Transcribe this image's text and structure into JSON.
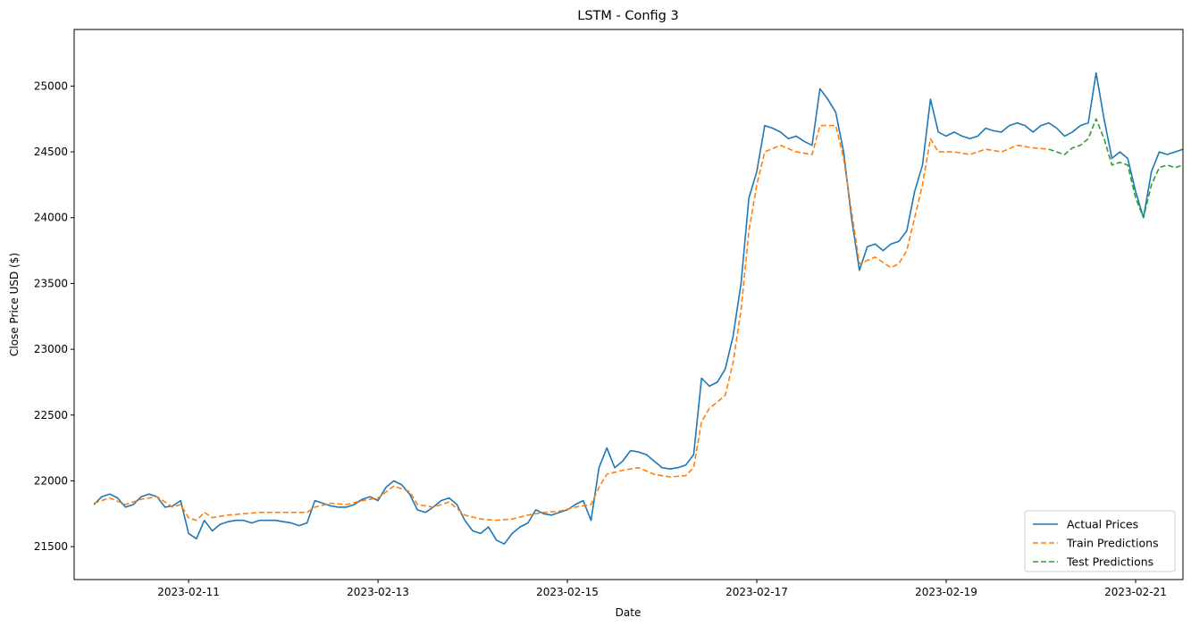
{
  "chart_data": {
    "type": "line",
    "title": "LSTM - Config 3",
    "xlabel": "Date",
    "ylabel": "Close Price USD ($)",
    "xlim": [
      "2023-02-09T19:00",
      "2023-02-21T12:00"
    ],
    "ylim": [
      21250,
      25430
    ],
    "x_ticks": [
      "2023-02-11",
      "2023-02-13",
      "2023-02-15",
      "2023-02-17",
      "2023-02-19",
      "2023-02-21"
    ],
    "y_ticks": [
      21500,
      22000,
      22500,
      23000,
      23500,
      24000,
      24500,
      25000
    ],
    "grid": false,
    "legend": "lower-right",
    "series": [
      {
        "name": "Actual Prices",
        "color": "#1f77b4",
        "style": "solid",
        "points": [
          [
            "2023-02-10T00:00",
            21820
          ],
          [
            "2023-02-10T02:00",
            21880
          ],
          [
            "2023-02-10T04:00",
            21900
          ],
          [
            "2023-02-10T06:00",
            21870
          ],
          [
            "2023-02-10T08:00",
            21800
          ],
          [
            "2023-02-10T10:00",
            21820
          ],
          [
            "2023-02-10T12:00",
            21880
          ],
          [
            "2023-02-10T14:00",
            21900
          ],
          [
            "2023-02-10T16:00",
            21880
          ],
          [
            "2023-02-10T18:00",
            21800
          ],
          [
            "2023-02-10T20:00",
            21810
          ],
          [
            "2023-02-10T22:00",
            21850
          ],
          [
            "2023-02-11T00:00",
            21600
          ],
          [
            "2023-02-11T02:00",
            21560
          ],
          [
            "2023-02-11T04:00",
            21700
          ],
          [
            "2023-02-11T06:00",
            21620
          ],
          [
            "2023-02-11T08:00",
            21670
          ],
          [
            "2023-02-11T10:00",
            21690
          ],
          [
            "2023-02-11T12:00",
            21700
          ],
          [
            "2023-02-11T14:00",
            21700
          ],
          [
            "2023-02-11T16:00",
            21680
          ],
          [
            "2023-02-11T18:00",
            21700
          ],
          [
            "2023-02-11T20:00",
            21700
          ],
          [
            "2023-02-11T22:00",
            21700
          ],
          [
            "2023-02-12T00:00",
            21690
          ],
          [
            "2023-02-12T02:00",
            21680
          ],
          [
            "2023-02-12T04:00",
            21660
          ],
          [
            "2023-02-12T06:00",
            21680
          ],
          [
            "2023-02-12T08:00",
            21850
          ],
          [
            "2023-02-12T10:00",
            21830
          ],
          [
            "2023-02-12T12:00",
            21810
          ],
          [
            "2023-02-12T14:00",
            21800
          ],
          [
            "2023-02-12T16:00",
            21800
          ],
          [
            "2023-02-12T18:00",
            21820
          ],
          [
            "2023-02-12T20:00",
            21860
          ],
          [
            "2023-02-12T22:00",
            21880
          ],
          [
            "2023-02-13T00:00",
            21850
          ],
          [
            "2023-02-13T02:00",
            21950
          ],
          [
            "2023-02-13T04:00",
            22000
          ],
          [
            "2023-02-13T06:00",
            21970
          ],
          [
            "2023-02-13T08:00",
            21900
          ],
          [
            "2023-02-13T10:00",
            21780
          ],
          [
            "2023-02-13T12:00",
            21760
          ],
          [
            "2023-02-13T14:00",
            21800
          ],
          [
            "2023-02-13T16:00",
            21850
          ],
          [
            "2023-02-13T18:00",
            21870
          ],
          [
            "2023-02-13T20:00",
            21820
          ],
          [
            "2023-02-13T22:00",
            21700
          ],
          [
            "2023-02-14T00:00",
            21620
          ],
          [
            "2023-02-14T02:00",
            21600
          ],
          [
            "2023-02-14T04:00",
            21650
          ],
          [
            "2023-02-14T06:00",
            21550
          ],
          [
            "2023-02-14T08:00",
            21520
          ],
          [
            "2023-02-14T10:00",
            21600
          ],
          [
            "2023-02-14T12:00",
            21650
          ],
          [
            "2023-02-14T14:00",
            21680
          ],
          [
            "2023-02-14T16:00",
            21780
          ],
          [
            "2023-02-14T18:00",
            21750
          ],
          [
            "2023-02-14T20:00",
            21740
          ],
          [
            "2023-02-14T22:00",
            21760
          ],
          [
            "2023-02-15T00:00",
            21780
          ],
          [
            "2023-02-15T02:00",
            21820
          ],
          [
            "2023-02-15T04:00",
            21850
          ],
          [
            "2023-02-15T06:00",
            21700
          ],
          [
            "2023-02-15T08:00",
            22100
          ],
          [
            "2023-02-15T10:00",
            22250
          ],
          [
            "2023-02-15T12:00",
            22100
          ],
          [
            "2023-02-15T14:00",
            22150
          ],
          [
            "2023-02-15T16:00",
            22230
          ],
          [
            "2023-02-15T18:00",
            22220
          ],
          [
            "2023-02-15T20:00",
            22200
          ],
          [
            "2023-02-15T22:00",
            22150
          ],
          [
            "2023-02-16T00:00",
            22100
          ],
          [
            "2023-02-16T02:00",
            22090
          ],
          [
            "2023-02-16T04:00",
            22100
          ],
          [
            "2023-02-16T06:00",
            22120
          ],
          [
            "2023-02-16T08:00",
            22200
          ],
          [
            "2023-02-16T10:00",
            22780
          ],
          [
            "2023-02-16T12:00",
            22720
          ],
          [
            "2023-02-16T14:00",
            22750
          ],
          [
            "2023-02-16T16:00",
            22850
          ],
          [
            "2023-02-16T18:00",
            23100
          ],
          [
            "2023-02-16T20:00",
            23500
          ],
          [
            "2023-02-16T22:00",
            24150
          ],
          [
            "2023-02-17T00:00",
            24350
          ],
          [
            "2023-02-17T02:00",
            24700
          ],
          [
            "2023-02-17T04:00",
            24680
          ],
          [
            "2023-02-17T06:00",
            24650
          ],
          [
            "2023-02-17T08:00",
            24600
          ],
          [
            "2023-02-17T10:00",
            24620
          ],
          [
            "2023-02-17T12:00",
            24580
          ],
          [
            "2023-02-17T14:00",
            24550
          ],
          [
            "2023-02-17T16:00",
            24980
          ],
          [
            "2023-02-17T18:00",
            24900
          ],
          [
            "2023-02-17T20:00",
            24800
          ],
          [
            "2023-02-17T22:00",
            24500
          ],
          [
            "2023-02-18T00:00",
            24000
          ],
          [
            "2023-02-18T02:00",
            23600
          ],
          [
            "2023-02-18T04:00",
            23780
          ],
          [
            "2023-02-18T06:00",
            23800
          ],
          [
            "2023-02-18T08:00",
            23750
          ],
          [
            "2023-02-18T10:00",
            23800
          ],
          [
            "2023-02-18T12:00",
            23820
          ],
          [
            "2023-02-18T14:00",
            23900
          ],
          [
            "2023-02-18T16:00",
            24200
          ],
          [
            "2023-02-18T18:00",
            24400
          ],
          [
            "2023-02-18T20:00",
            24900
          ],
          [
            "2023-02-18T22:00",
            24650
          ],
          [
            "2023-02-19T00:00",
            24620
          ],
          [
            "2023-02-19T02:00",
            24650
          ],
          [
            "2023-02-19T04:00",
            24620
          ],
          [
            "2023-02-19T06:00",
            24600
          ],
          [
            "2023-02-19T08:00",
            24620
          ],
          [
            "2023-02-19T10:00",
            24680
          ],
          [
            "2023-02-19T12:00",
            24660
          ],
          [
            "2023-02-19T14:00",
            24650
          ],
          [
            "2023-02-19T16:00",
            24700
          ],
          [
            "2023-02-19T18:00",
            24720
          ],
          [
            "2023-02-19T20:00",
            24700
          ],
          [
            "2023-02-19T22:00",
            24650
          ],
          [
            "2023-02-20T00:00",
            24700
          ],
          [
            "2023-02-20T02:00",
            24720
          ],
          [
            "2023-02-20T04:00",
            24680
          ],
          [
            "2023-02-20T06:00",
            24620
          ],
          [
            "2023-02-20T08:00",
            24650
          ],
          [
            "2023-02-20T10:00",
            24700
          ],
          [
            "2023-02-20T12:00",
            24720
          ],
          [
            "2023-02-20T14:00",
            25100
          ],
          [
            "2023-02-20T16:00",
            24750
          ],
          [
            "2023-02-20T18:00",
            24450
          ],
          [
            "2023-02-20T20:00",
            24500
          ],
          [
            "2023-02-20T22:00",
            24450
          ],
          [
            "2023-02-21T00:00",
            24200
          ],
          [
            "2023-02-21T02:00",
            24000
          ],
          [
            "2023-02-21T04:00",
            24350
          ],
          [
            "2023-02-21T06:00",
            24500
          ],
          [
            "2023-02-21T08:00",
            24480
          ],
          [
            "2023-02-21T10:00",
            24500
          ],
          [
            "2023-02-21T12:00",
            24520
          ]
        ]
      },
      {
        "name": "Train Predictions",
        "color": "#ff7f0e",
        "style": "dashed",
        "points": [
          [
            "2023-02-10T00:00",
            21830
          ],
          [
            "2023-02-10T04:00",
            21870
          ],
          [
            "2023-02-10T08:00",
            21820
          ],
          [
            "2023-02-10T12:00",
            21860
          ],
          [
            "2023-02-10T16:00",
            21880
          ],
          [
            "2023-02-10T20:00",
            21800
          ],
          [
            "2023-02-10T22:00",
            21820
          ],
          [
            "2023-02-11T00:00",
            21720
          ],
          [
            "2023-02-11T02:00",
            21700
          ],
          [
            "2023-02-11T04:00",
            21760
          ],
          [
            "2023-02-11T06:00",
            21720
          ],
          [
            "2023-02-11T10:00",
            21740
          ],
          [
            "2023-02-11T14:00",
            21750
          ],
          [
            "2023-02-11T18:00",
            21760
          ],
          [
            "2023-02-11T22:00",
            21760
          ],
          [
            "2023-02-12T02:00",
            21760
          ],
          [
            "2023-02-12T06:00",
            21760
          ],
          [
            "2023-02-12T08:00",
            21800
          ],
          [
            "2023-02-12T12:00",
            21830
          ],
          [
            "2023-02-12T16:00",
            21820
          ],
          [
            "2023-02-12T20:00",
            21850
          ],
          [
            "2023-02-13T00:00",
            21870
          ],
          [
            "2023-02-13T04:00",
            21960
          ],
          [
            "2023-02-13T08:00",
            21920
          ],
          [
            "2023-02-13T10:00",
            21820
          ],
          [
            "2023-02-13T14:00",
            21800
          ],
          [
            "2023-02-13T18:00",
            21840
          ],
          [
            "2023-02-13T22:00",
            21740
          ],
          [
            "2023-02-14T02:00",
            21710
          ],
          [
            "2023-02-14T06:00",
            21700
          ],
          [
            "2023-02-14T10:00",
            21710
          ],
          [
            "2023-02-14T14:00",
            21740
          ],
          [
            "2023-02-14T18:00",
            21760
          ],
          [
            "2023-02-14T22:00",
            21770
          ],
          [
            "2023-02-15T02:00",
            21800
          ],
          [
            "2023-02-15T06:00",
            21820
          ],
          [
            "2023-02-15T08:00",
            21950
          ],
          [
            "2023-02-15T10:00",
            22050
          ],
          [
            "2023-02-15T14:00",
            22080
          ],
          [
            "2023-02-15T18:00",
            22100
          ],
          [
            "2023-02-15T22:00",
            22050
          ],
          [
            "2023-02-16T02:00",
            22030
          ],
          [
            "2023-02-16T06:00",
            22040
          ],
          [
            "2023-02-16T08:00",
            22100
          ],
          [
            "2023-02-16T10:00",
            22450
          ],
          [
            "2023-02-16T12:00",
            22550
          ],
          [
            "2023-02-16T16:00",
            22650
          ],
          [
            "2023-02-16T18:00",
            22900
          ],
          [
            "2023-02-16T20:00",
            23300
          ],
          [
            "2023-02-16T22:00",
            23900
          ],
          [
            "2023-02-17T00:00",
            24250
          ],
          [
            "2023-02-17T02:00",
            24500
          ],
          [
            "2023-02-17T06:00",
            24550
          ],
          [
            "2023-02-17T10:00",
            24500
          ],
          [
            "2023-02-17T14:00",
            24480
          ],
          [
            "2023-02-17T16:00",
            24700
          ],
          [
            "2023-02-17T20:00",
            24700
          ],
          [
            "2023-02-17T22:00",
            24450
          ],
          [
            "2023-02-18T00:00",
            24050
          ],
          [
            "2023-02-18T02:00",
            23650
          ],
          [
            "2023-02-18T06:00",
            23700
          ],
          [
            "2023-02-18T10:00",
            23620
          ],
          [
            "2023-02-18T12:00",
            23650
          ],
          [
            "2023-02-18T14:00",
            23750
          ],
          [
            "2023-02-18T16:00",
            24000
          ],
          [
            "2023-02-18T18:00",
            24250
          ],
          [
            "2023-02-18T20:00",
            24600
          ],
          [
            "2023-02-18T22:00",
            24500
          ],
          [
            "2023-02-19T02:00",
            24500
          ],
          [
            "2023-02-19T06:00",
            24480
          ],
          [
            "2023-02-19T10:00",
            24520
          ],
          [
            "2023-02-19T14:00",
            24500
          ],
          [
            "2023-02-19T18:00",
            24550
          ],
          [
            "2023-02-19T22:00",
            24530
          ],
          [
            "2023-02-20T02:00",
            24520
          ]
        ]
      },
      {
        "name": "Test Predictions",
        "color": "#2ca02c",
        "style": "dashed",
        "points": [
          [
            "2023-02-20T02:00",
            24520
          ],
          [
            "2023-02-20T04:00",
            24500
          ],
          [
            "2023-02-20T06:00",
            24480
          ],
          [
            "2023-02-20T08:00",
            24530
          ],
          [
            "2023-02-20T10:00",
            24550
          ],
          [
            "2023-02-20T12:00",
            24600
          ],
          [
            "2023-02-20T14:00",
            24750
          ],
          [
            "2023-02-20T16:00",
            24600
          ],
          [
            "2023-02-20T18:00",
            24400
          ],
          [
            "2023-02-20T20:00",
            24420
          ],
          [
            "2023-02-20T22:00",
            24400
          ],
          [
            "2023-02-21T00:00",
            24150
          ],
          [
            "2023-02-21T02:00",
            24000
          ],
          [
            "2023-02-21T04:00",
            24250
          ],
          [
            "2023-02-21T06:00",
            24380
          ],
          [
            "2023-02-21T08:00",
            24400
          ],
          [
            "2023-02-21T10:00",
            24380
          ],
          [
            "2023-02-21T12:00",
            24400
          ]
        ]
      }
    ]
  }
}
